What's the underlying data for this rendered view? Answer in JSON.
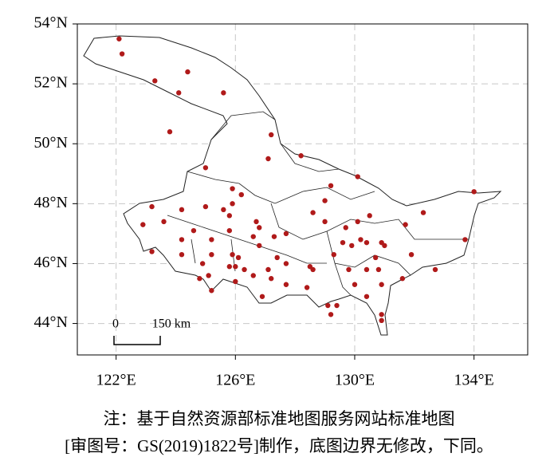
{
  "chart_data": {
    "type": "scatter",
    "x": [
      122.1,
      122.2,
      123.3,
      124.4,
      124.1,
      123.8,
      125.0,
      125.6,
      127.2,
      127.1,
      128.2,
      130.1,
      129.2,
      129.0,
      134.0,
      132.3,
      131.7,
      123.2,
      122.9,
      124.2,
      125.0,
      125.9,
      126.2,
      125.9,
      125.6,
      125.8,
      126.7,
      126.8,
      126.6,
      127.3,
      126.8,
      125.8,
      125.2,
      124.6,
      124.2,
      123.6,
      124.2,
      125.2,
      125.9,
      126.0,
      126.1,
      126.3,
      126.6,
      126.9,
      127.4,
      127.1,
      127.2,
      127.7,
      127.7,
      128.6,
      129.0,
      129.7,
      130.1,
      130.5,
      130.2,
      129.9,
      130.4,
      130.9,
      131.0,
      130.7,
      129.6,
      129.3,
      128.5,
      128.6,
      128.4,
      127.7,
      124.9,
      125.1,
      124.8,
      125.8,
      126.0,
      129.8,
      130.4,
      130.8,
      130.9,
      130.0,
      130.4,
      131.6,
      131.9,
      133.7,
      132.7,
      129.1,
      129.4,
      129.2,
      130.9,
      130.9,
      123.2,
      125.2
    ],
    "y": [
      53.5,
      53.0,
      52.1,
      52.4,
      51.7,
      50.4,
      49.2,
      51.7,
      50.3,
      49.5,
      49.6,
      48.9,
      48.6,
      48.1,
      48.4,
      47.7,
      47.3,
      47.9,
      47.3,
      47.8,
      47.9,
      48.5,
      48.3,
      48.0,
      47.8,
      47.6,
      47.4,
      47.2,
      46.9,
      46.9,
      46.6,
      47.1,
      46.8,
      47.1,
      46.8,
      47.4,
      46.3,
      46.3,
      46.3,
      45.9,
      46.2,
      45.8,
      45.6,
      44.9,
      46.2,
      45.8,
      45.5,
      46.0,
      47.0,
      47.7,
      47.4,
      47.2,
      47.4,
      47.6,
      46.8,
      46.6,
      46.7,
      46.7,
      46.6,
      46.2,
      46.7,
      46.3,
      45.9,
      45.8,
      45.2,
      45.3,
      46.0,
      45.6,
      45.5,
      45.9,
      45.4,
      45.8,
      45.8,
      45.8,
      45.3,
      45.3,
      44.9,
      45.5,
      46.3,
      46.8,
      45.8,
      44.6,
      44.6,
      44.3,
      44.3,
      44.1,
      46.4,
      45.1
    ],
    "color": "#b01a1a",
    "xlim": [
      120.7,
      135.8
    ],
    "ylim": [
      42.95,
      54
    ],
    "xticks": [
      {
        "value": 122,
        "label": "122°E"
      },
      {
        "value": 126,
        "label": "126°E"
      },
      {
        "value": 130,
        "label": "130°E"
      },
      {
        "value": 134,
        "label": "134°E"
      }
    ],
    "yticks": [
      {
        "value": 44,
        "label": "44°N"
      },
      {
        "value": 46,
        "label": "46°N"
      },
      {
        "value": 48,
        "label": "48°N"
      },
      {
        "value": 50,
        "label": "50°N"
      },
      {
        "value": 52,
        "label": "52°N"
      },
      {
        "value": 54,
        "label": "54°N"
      }
    ],
    "grid": true,
    "scale_bar": {
      "start_label": "0",
      "end_label": "150 km"
    },
    "caption": [
      "注：基于自然资源部标准地图服务网站标准地图",
      "[审图号：GS(2019)1822号]制作，底图边界无修改，下同。"
    ]
  }
}
